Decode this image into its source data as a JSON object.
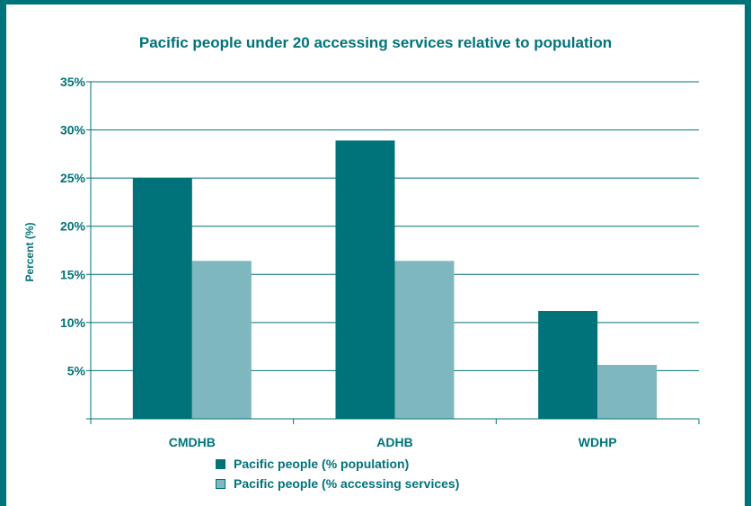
{
  "chart_data": {
    "type": "bar",
    "title": "Pacific people under 20 accessing services relative to population",
    "ylabel": "Percent (%)",
    "xlabel": "",
    "categories": [
      "CMDHB",
      "ADHB",
      "WDHP"
    ],
    "series": [
      {
        "name": "Pacific people (% population)",
        "values": [
          25.0,
          28.9,
          11.2
        ],
        "color": "#00737a"
      },
      {
        "name": "Pacific people (% accessing services)",
        "values": [
          16.4,
          16.4,
          5.6
        ],
        "color": "#7fb7bf"
      }
    ],
    "ylim": [
      0,
      35
    ],
    "yticks": [
      0,
      5,
      10,
      15,
      20,
      25,
      30,
      35
    ],
    "ytick_labels": [
      "",
      "5%",
      "10%",
      "15%",
      "20%",
      "25%",
      "30%",
      "35%"
    ],
    "grid": true,
    "legend_position": "bottom"
  },
  "colors": {
    "accent": "#00737a",
    "series_dark": "#00737a",
    "series_light": "#7fb7bf"
  }
}
